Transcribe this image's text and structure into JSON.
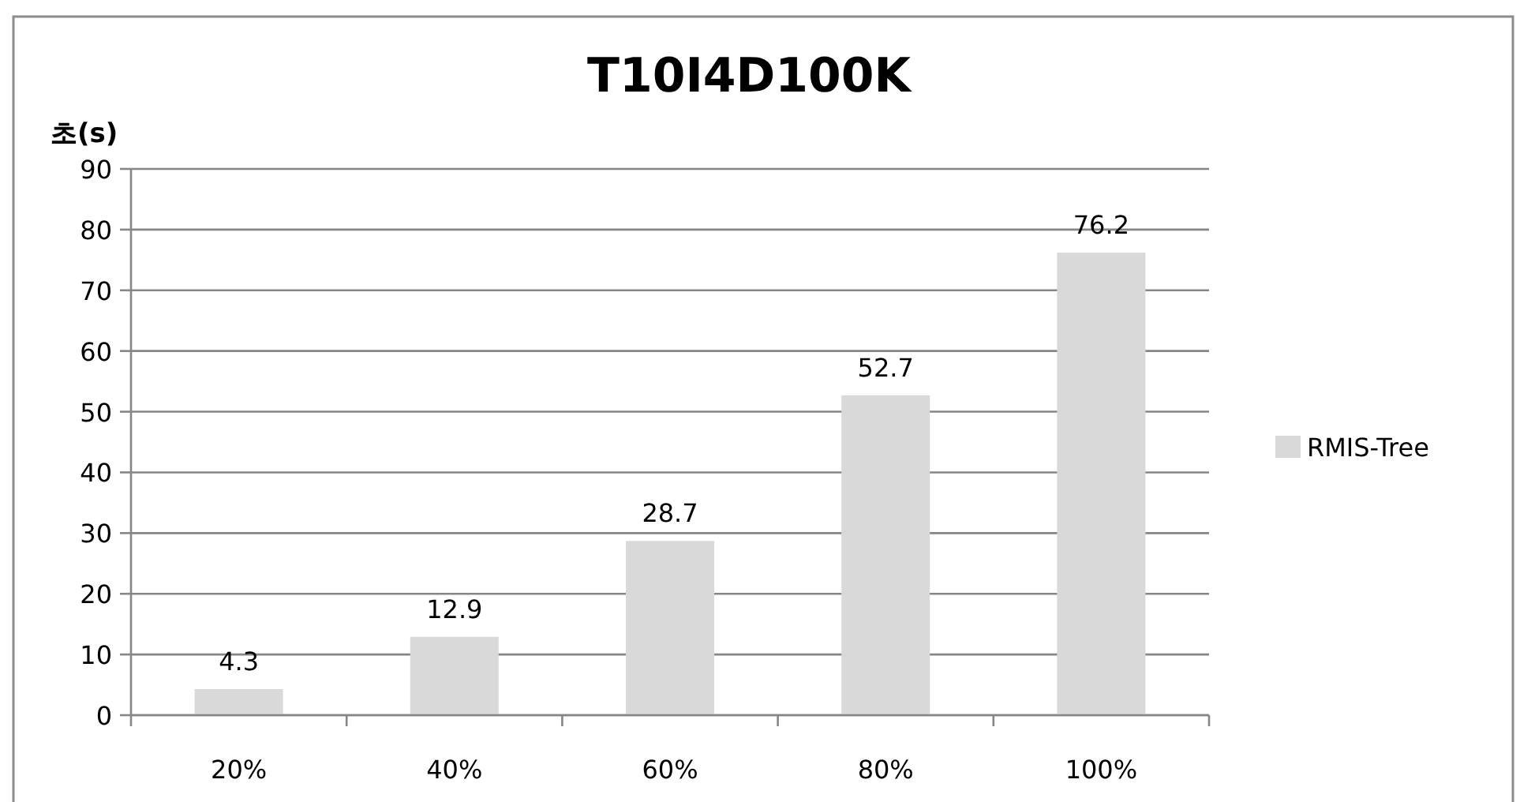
{
  "chart_data": {
    "type": "bar",
    "title": "T10I4D100K",
    "ylabel": "초(s)",
    "categories": [
      "20%",
      "40%",
      "60%",
      "80%",
      "100%"
    ],
    "series": [
      {
        "name": "RMIS-Tree",
        "color": "#d9d9d9",
        "values": [
          4.3,
          12.9,
          28.7,
          52.7,
          76.2
        ]
      }
    ],
    "ylim": [
      0,
      90
    ],
    "yticks": [
      0,
      10,
      20,
      30,
      40,
      50,
      60,
      70,
      80,
      90
    ],
    "grid": "y",
    "legend": "right",
    "data_labels": true
  }
}
